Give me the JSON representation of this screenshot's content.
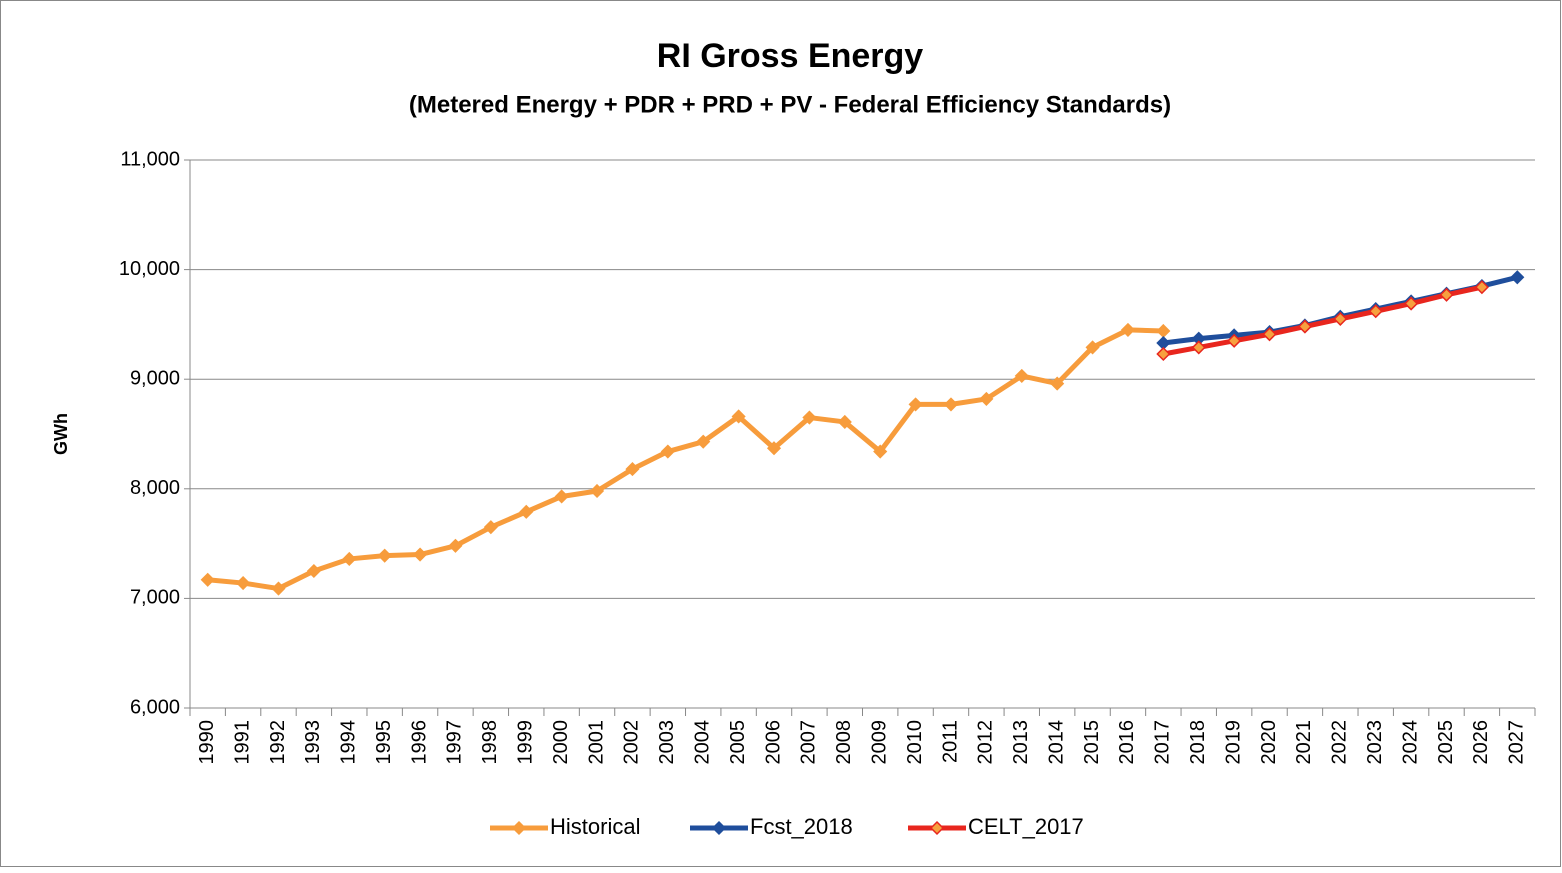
{
  "chart_data": {
    "type": "line",
    "title": "RI Gross Energy",
    "subtitle": "(Metered Energy + PDR + PRD + PV - Federal Efficiency Standards)",
    "y_label": "GWh",
    "categories": [
      "1990",
      "1991",
      "1992",
      "1993",
      "1994",
      "1995",
      "1996",
      "1997",
      "1998",
      "1999",
      "2000",
      "2001",
      "2002",
      "2003",
      "2004",
      "2005",
      "2006",
      "2007",
      "2008",
      "2009",
      "2010",
      "2011",
      "2012",
      "2013",
      "2014",
      "2015",
      "2016",
      "2017",
      "2018",
      "2019",
      "2020",
      "2021",
      "2022",
      "2023",
      "2024",
      "2025",
      "2026",
      "2027"
    ],
    "series": [
      {
        "name": "Historical",
        "color": "#f79c3c",
        "marker_color": "#f79c3c",
        "values": [
          7170,
          7140,
          7090,
          7250,
          7360,
          7390,
          7400,
          7480,
          7650,
          7790,
          7930,
          7980,
          8180,
          8340,
          8430,
          8660,
          8370,
          8650,
          8610,
          8340,
          8770,
          8770,
          8820,
          9030,
          8960,
          9290,
          9450,
          9440,
          null,
          null,
          null,
          null,
          null,
          null,
          null,
          null,
          null,
          null
        ]
      },
      {
        "name": "Fcst_2018",
        "color": "#1f4e9c",
        "marker_color": "#1f4e9c",
        "values": [
          null,
          null,
          null,
          null,
          null,
          null,
          null,
          null,
          null,
          null,
          null,
          null,
          null,
          null,
          null,
          null,
          null,
          null,
          null,
          null,
          null,
          null,
          null,
          null,
          null,
          null,
          null,
          9330,
          9370,
          9400,
          9430,
          9490,
          9570,
          9640,
          9710,
          9780,
          9850,
          9930
        ]
      },
      {
        "name": "CELT_2017",
        "color": "#e8261e",
        "marker_color": "#f7a13f",
        "values": [
          null,
          null,
          null,
          null,
          null,
          null,
          null,
          null,
          null,
          null,
          null,
          null,
          null,
          null,
          null,
          null,
          null,
          null,
          null,
          null,
          null,
          null,
          null,
          null,
          null,
          null,
          null,
          9230,
          9290,
          9350,
          9410,
          9480,
          9550,
          9620,
          9690,
          9770,
          9840,
          null
        ]
      }
    ],
    "ylim": [
      6000,
      11000
    ],
    "yticks": [
      {
        "value": 6000,
        "label": "6,000"
      },
      {
        "value": 7000,
        "label": "7,000"
      },
      {
        "value": 8000,
        "label": "8,000"
      },
      {
        "value": 9000,
        "label": "9,000"
      },
      {
        "value": 10000,
        "label": "10,000"
      },
      {
        "value": 11000,
        "label": "11,000"
      }
    ],
    "grid": true,
    "legend": "bottom"
  }
}
